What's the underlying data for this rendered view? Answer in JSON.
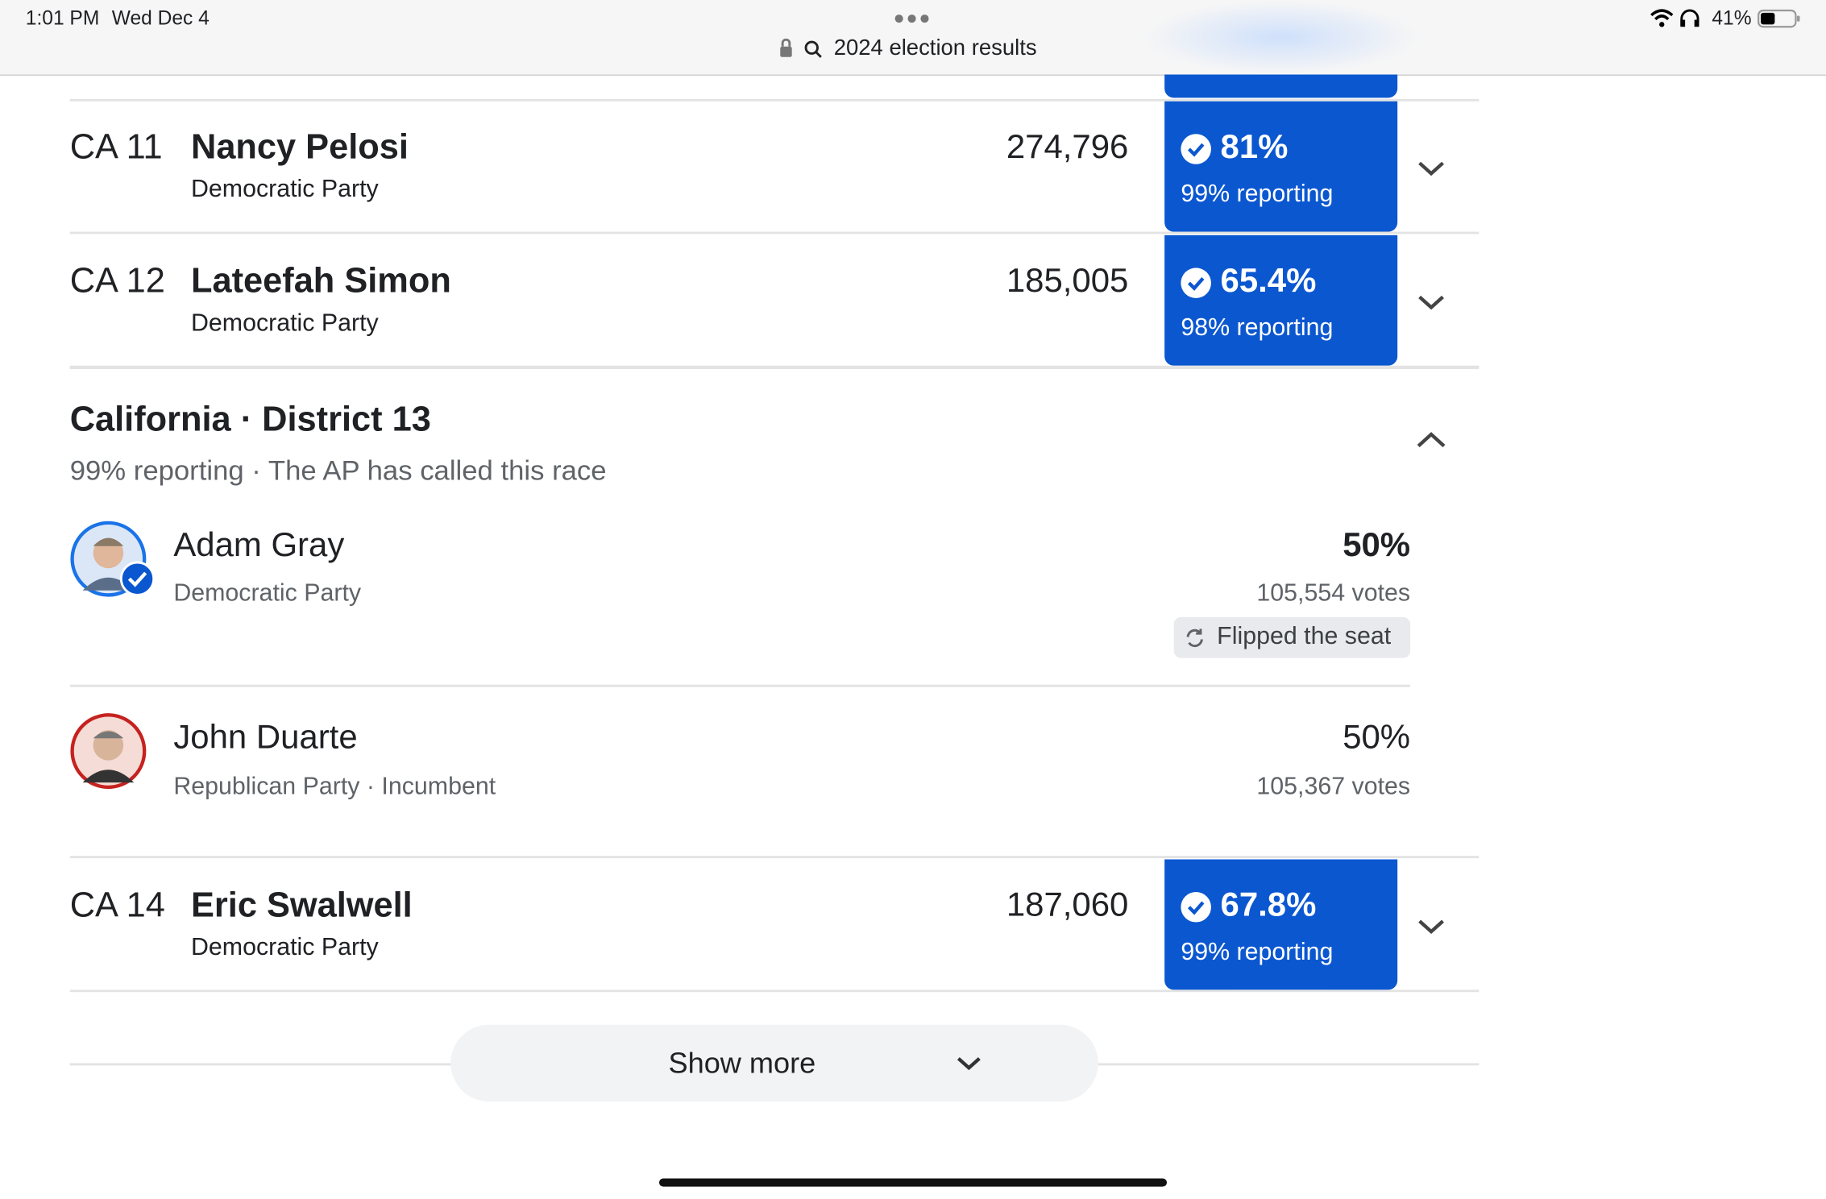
{
  "status_bar": {
    "time": "1:01 PM",
    "date": "Wed Dec 4",
    "battery": "41%"
  },
  "address_bar": {
    "query": "2024 election results"
  },
  "races": [
    {
      "district": "CA 11",
      "candidate": "Nancy Pelosi",
      "party": "Democratic Party",
      "votes": "274,796",
      "percent": "81%",
      "reporting": "99% reporting"
    },
    {
      "district": "CA 12",
      "candidate": "Lateefah Simon",
      "party": "Democratic Party",
      "votes": "185,005",
      "percent": "65.4%",
      "reporting": "98% reporting"
    },
    {
      "district": "CA 14",
      "candidate": "Eric Swalwell",
      "party": "Democratic Party",
      "votes": "187,060",
      "percent": "67.8%",
      "reporting": "99% reporting"
    }
  ],
  "expanded_race": {
    "title": "California · District 13",
    "reporting": "99% reporting",
    "status": "The AP has called this race",
    "candidates": [
      {
        "name": "Adam Gray",
        "party": "Democratic Party",
        "percent": "50%",
        "votes": "105,554 votes",
        "badge": "Flipped the seat"
      },
      {
        "name": "John Duarte",
        "party": "Republican Party",
        "incumbent": "Incumbent",
        "percent": "50%",
        "votes": "105,367 votes"
      }
    ]
  },
  "show_more": "Show more"
}
